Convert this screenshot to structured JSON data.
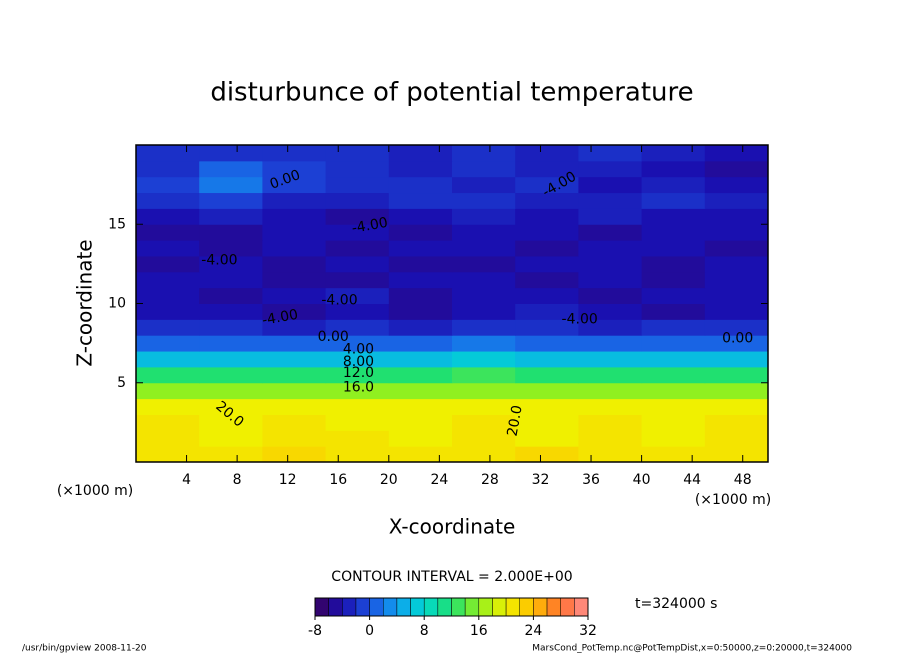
{
  "chart_data": {
    "type": "heatmap",
    "title": "disturbunce of potential temperature",
    "x_label": "X-coordinate",
    "y_label": "Z-coordinate",
    "x_unit": "(×1000 m)",
    "y_unit": "(×1000 m)",
    "xlim": [
      0,
      50
    ],
    "ylim": [
      0,
      20
    ],
    "xticks": [
      4,
      8,
      12,
      16,
      20,
      24,
      28,
      32,
      36,
      40,
      44,
      48
    ],
    "yticks": [
      5,
      10,
      15
    ],
    "xbins": [
      0,
      5,
      10,
      15,
      20,
      25,
      30,
      35,
      40,
      45,
      50
    ],
    "zbins": [
      0,
      1,
      2,
      3,
      4,
      5,
      6,
      7,
      8,
      9,
      10,
      11,
      12,
      13,
      14,
      15,
      16,
      17,
      18,
      19,
      20
    ],
    "values": [
      [
        21,
        21,
        22,
        21,
        21,
        21,
        22,
        21,
        21,
        21
      ],
      [
        21,
        20,
        21,
        21,
        20,
        21,
        20,
        21,
        20,
        21
      ],
      [
        21,
        20,
        21,
        20,
        20,
        21,
        20,
        21,
        20,
        21
      ],
      [
        20,
        20,
        20,
        20,
        20,
        20,
        20,
        20,
        20,
        20
      ],
      [
        16,
        16,
        16,
        16,
        16,
        16,
        16,
        16,
        16,
        16
      ],
      [
        12,
        12,
        12,
        12,
        12,
        13,
        12,
        12,
        12,
        12
      ],
      [
        6,
        6,
        6,
        6,
        6,
        7,
        6,
        6,
        6,
        6
      ],
      [
        1,
        1,
        1,
        1,
        1,
        2,
        1,
        1,
        1,
        1
      ],
      [
        -2,
        -2,
        -3,
        -2,
        -3,
        -2,
        -2,
        -3,
        -2,
        -2
      ],
      [
        -4,
        -4,
        -5,
        -4,
        -5,
        -4,
        -3,
        -4,
        -5,
        -4
      ],
      [
        -4,
        -5,
        -4,
        -3,
        -5,
        -4,
        -4,
        -5,
        -4,
        -4
      ],
      [
        -4,
        -4,
        -5,
        -5,
        -4,
        -4,
        -5,
        -4,
        -5,
        -4
      ],
      [
        -5,
        -4,
        -5,
        -4,
        -5,
        -5,
        -4,
        -4,
        -5,
        -4
      ],
      [
        -4,
        -5,
        -4,
        -5,
        -4,
        -4,
        -5,
        -4,
        -4,
        -5
      ],
      [
        -5,
        -5,
        -4,
        -4,
        -5,
        -4,
        -4,
        -5,
        -4,
        -4
      ],
      [
        -4,
        -3,
        -4,
        -5,
        -4,
        -3,
        -4,
        -3,
        -4,
        -4
      ],
      [
        -2,
        -1,
        -3,
        -3,
        -2,
        -2,
        -3,
        -3,
        -2,
        -3
      ],
      [
        -1,
        2,
        -1,
        -2,
        -2,
        -3,
        -2,
        -4,
        -3,
        -4
      ],
      [
        -2,
        1,
        -1,
        -2,
        -3,
        -2,
        -3,
        -3,
        -4,
        -5
      ],
      [
        -2,
        -2,
        -2,
        -2,
        -3,
        -2,
        -3,
        -2,
        -3,
        -4
      ]
    ],
    "contour_labels": [
      {
        "text": "0.00",
        "x": 11.8,
        "z": 17.8,
        "angle": 20
      },
      {
        "text": "-4.00",
        "x": 33.5,
        "z": 17.5,
        "angle": 30
      },
      {
        "text": "-4.00",
        "x": 18.5,
        "z": 14.9,
        "angle": 10
      },
      {
        "text": "-4.00",
        "x": 6.6,
        "z": 12.7,
        "angle": 0
      },
      {
        "text": "-4.00",
        "x": 16.1,
        "z": 10.2,
        "angle": 0
      },
      {
        "text": "-4.00",
        "x": 11.4,
        "z": 9.1,
        "angle": 10
      },
      {
        "text": "-4.00",
        "x": 35.1,
        "z": 9.0,
        "angle": 0
      },
      {
        "text": "0.00",
        "x": 15.6,
        "z": 7.9,
        "angle": 0
      },
      {
        "text": "0.00",
        "x": 47.6,
        "z": 7.8,
        "angle": 0
      },
      {
        "text": "4.00",
        "x": 17.6,
        "z": 7.1,
        "angle": 0
      },
      {
        "text": "8.00",
        "x": 17.6,
        "z": 6.3,
        "angle": 0
      },
      {
        "text": "12.0",
        "x": 17.6,
        "z": 5.6,
        "angle": 0
      },
      {
        "text": "16.0",
        "x": 17.6,
        "z": 4.7,
        "angle": 0
      },
      {
        "text": "20.0",
        "x": 7.4,
        "z": 3.0,
        "angle": -40
      },
      {
        "text": "20.0",
        "x": 30.0,
        "z": 2.6,
        "angle": 80
      }
    ],
    "contour_interval": {
      "value": 2,
      "label": "CONTOUR INTERVAL = 2.000E+00"
    },
    "clim": [
      -8,
      32
    ],
    "cticks": [
      -8,
      0,
      8,
      16,
      24,
      32
    ],
    "colormap": [
      "#3a005a",
      "#1a10b0",
      "#1c50e0",
      "#10a0f0",
      "#00d8d0",
      "#20e070",
      "#90f020",
      "#f0f000",
      "#ffc000",
      "#ff7030",
      "#ff9090"
    ],
    "time_label": "t=324000 s",
    "footer_left": "/usr/bin/gpview   2008-11-20",
    "footer_right": "MarsCond_PotTemp.nc@PotTempDist,x=0:50000,z=0:20000,t=324000"
  }
}
